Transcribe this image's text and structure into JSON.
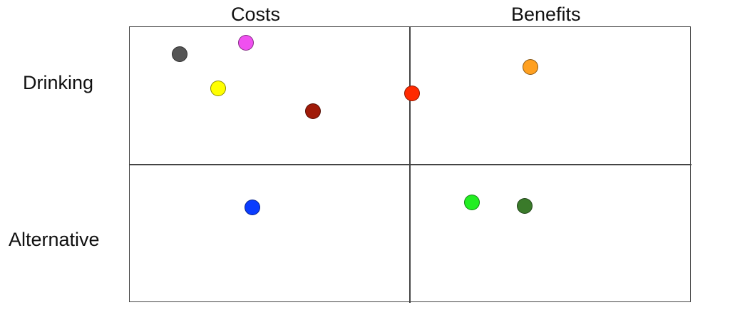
{
  "columns": [
    "Costs",
    "Benefits"
  ],
  "rows": [
    "Drinking",
    "Alternative"
  ],
  "dots": [
    {
      "color": "#555555",
      "quadrant": "Drinking-Costs"
    },
    {
      "color": "#f050f0",
      "quadrant": "Drinking-Costs"
    },
    {
      "color": "#ffff00",
      "quadrant": "Drinking-Costs"
    },
    {
      "color": "#a01a08",
      "quadrant": "Drinking-Costs"
    },
    {
      "color": "#ff2a00",
      "quadrant": "Drinking-Costs/Benefits boundary"
    },
    {
      "color": "#ffa020",
      "quadrant": "Drinking-Benefits"
    },
    {
      "color": "#0a3cff",
      "quadrant": "Alternative-Costs"
    },
    {
      "color": "#22ee22",
      "quadrant": "Alternative-Benefits"
    },
    {
      "color": "#3a7a2a",
      "quadrant": "Alternative-Benefits"
    }
  ]
}
